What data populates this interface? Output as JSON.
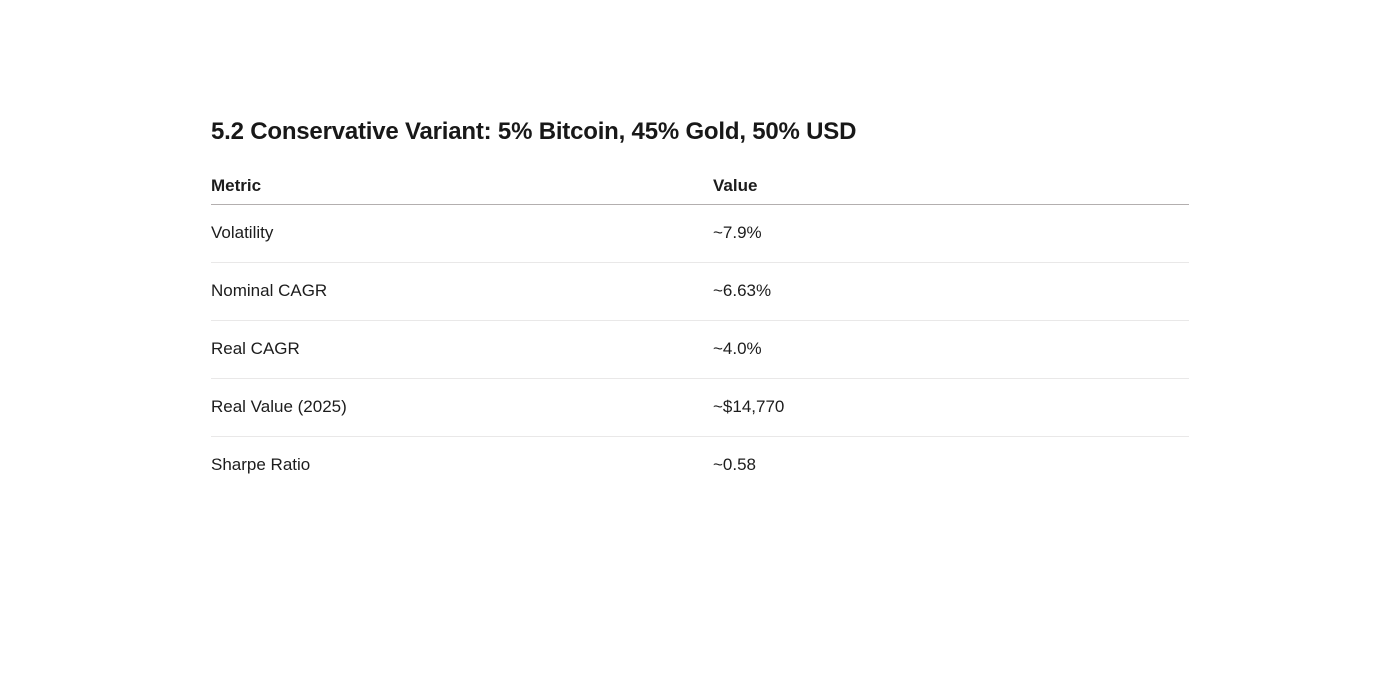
{
  "page": {
    "background": "#ffffff",
    "text_color": "#1c1c1c",
    "header_rule_color": "#b3afaf",
    "row_rule_color": "#e9e8e8"
  },
  "section": {
    "heading": "5.2 Conservative Variant: 5% Bitcoin, 45% Gold, 50% USD"
  },
  "table": {
    "columns": [
      "Metric",
      "Value"
    ],
    "rows": [
      {
        "metric": "Volatility",
        "value": "~7.9%"
      },
      {
        "metric": "Nominal CAGR",
        "value": "~6.63%"
      },
      {
        "metric": "Real CAGR",
        "value": "~4.0%"
      },
      {
        "metric": "Real Value (2025)",
        "value": "~$14,770"
      },
      {
        "metric": "Sharpe Ratio",
        "value": "~0.58"
      }
    ]
  }
}
